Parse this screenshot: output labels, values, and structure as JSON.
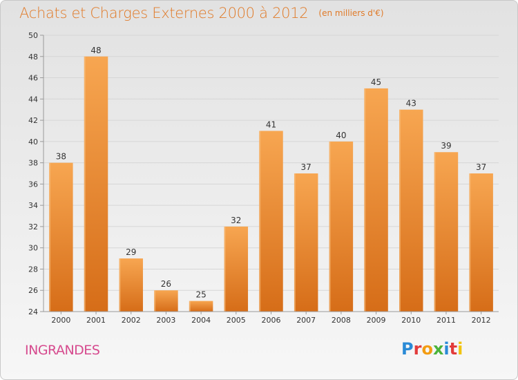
{
  "header": {
    "title": "Achats et Charges Externes 2000 à 2012",
    "subtitle": "(en milliers d'€)"
  },
  "footer": {
    "city": "INGRANDES",
    "logo_text": "Proxiti",
    "logo_colors": [
      "#2a8ad6",
      "#e23b3b",
      "#f39c12",
      "#4bb33a",
      "#2a8ad6",
      "#e23b3b",
      "#f1c40f"
    ]
  },
  "colors": {
    "bar_top": "#f7a651",
    "bar_bottom": "#d66d18",
    "axis": "#999999",
    "grid": "#d6d6d6",
    "text": "#333333"
  },
  "chart_data": {
    "type": "bar",
    "title": "Achats et Charges Externes 2000 à 2012",
    "subtitle": "(en milliers d'€)",
    "xlabel": "",
    "ylabel": "",
    "categories": [
      "2000",
      "2001",
      "2002",
      "2003",
      "2004",
      "2005",
      "2006",
      "2007",
      "2008",
      "2009",
      "2010",
      "2011",
      "2012"
    ],
    "values": [
      38,
      48,
      29,
      26,
      25,
      32,
      41,
      37,
      40,
      45,
      43,
      39,
      37
    ],
    "ylim": [
      24,
      50
    ],
    "yticks": [
      24,
      26,
      28,
      30,
      32,
      34,
      36,
      38,
      40,
      42,
      44,
      46,
      48,
      50
    ],
    "grid": true,
    "legend": "none"
  }
}
